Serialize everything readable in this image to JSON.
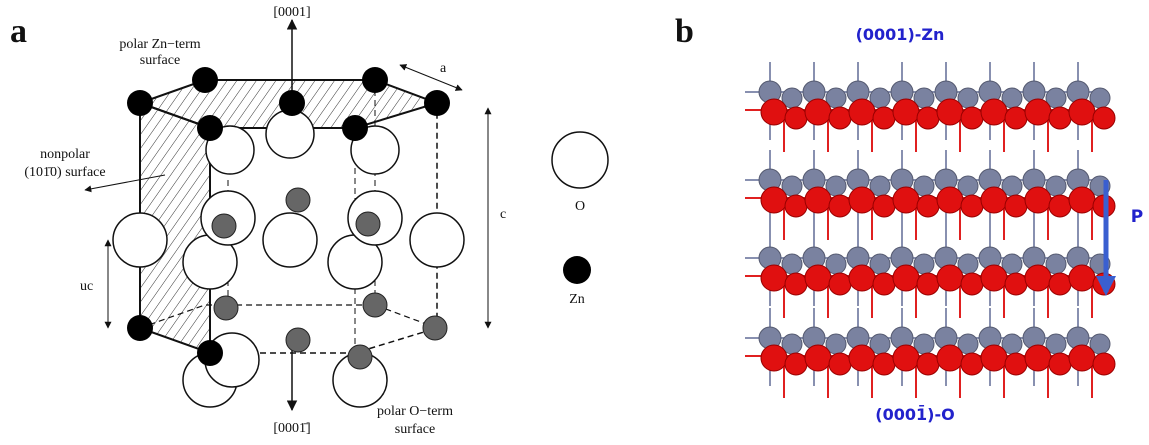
{
  "panel_a": {
    "label": "a",
    "axis_top": "[0001]",
    "axis_bottom": "[0001̄]",
    "zn_surface": [
      "polar Zn−term",
      "surface"
    ],
    "nonpolar_surface": [
      "nonpolar",
      "(101̄0) surface"
    ],
    "o_surface": [
      "polar O−term",
      "surface"
    ],
    "lattice_a": "a",
    "lattice_c": "c",
    "lattice_uc": "uc",
    "legend": [
      "O",
      "Zn"
    ]
  },
  "panel_b": {
    "label": "b",
    "top_surface": "(0001)-Zn",
    "bottom_surface": "(0001̄)-O",
    "polarization": "P"
  }
}
